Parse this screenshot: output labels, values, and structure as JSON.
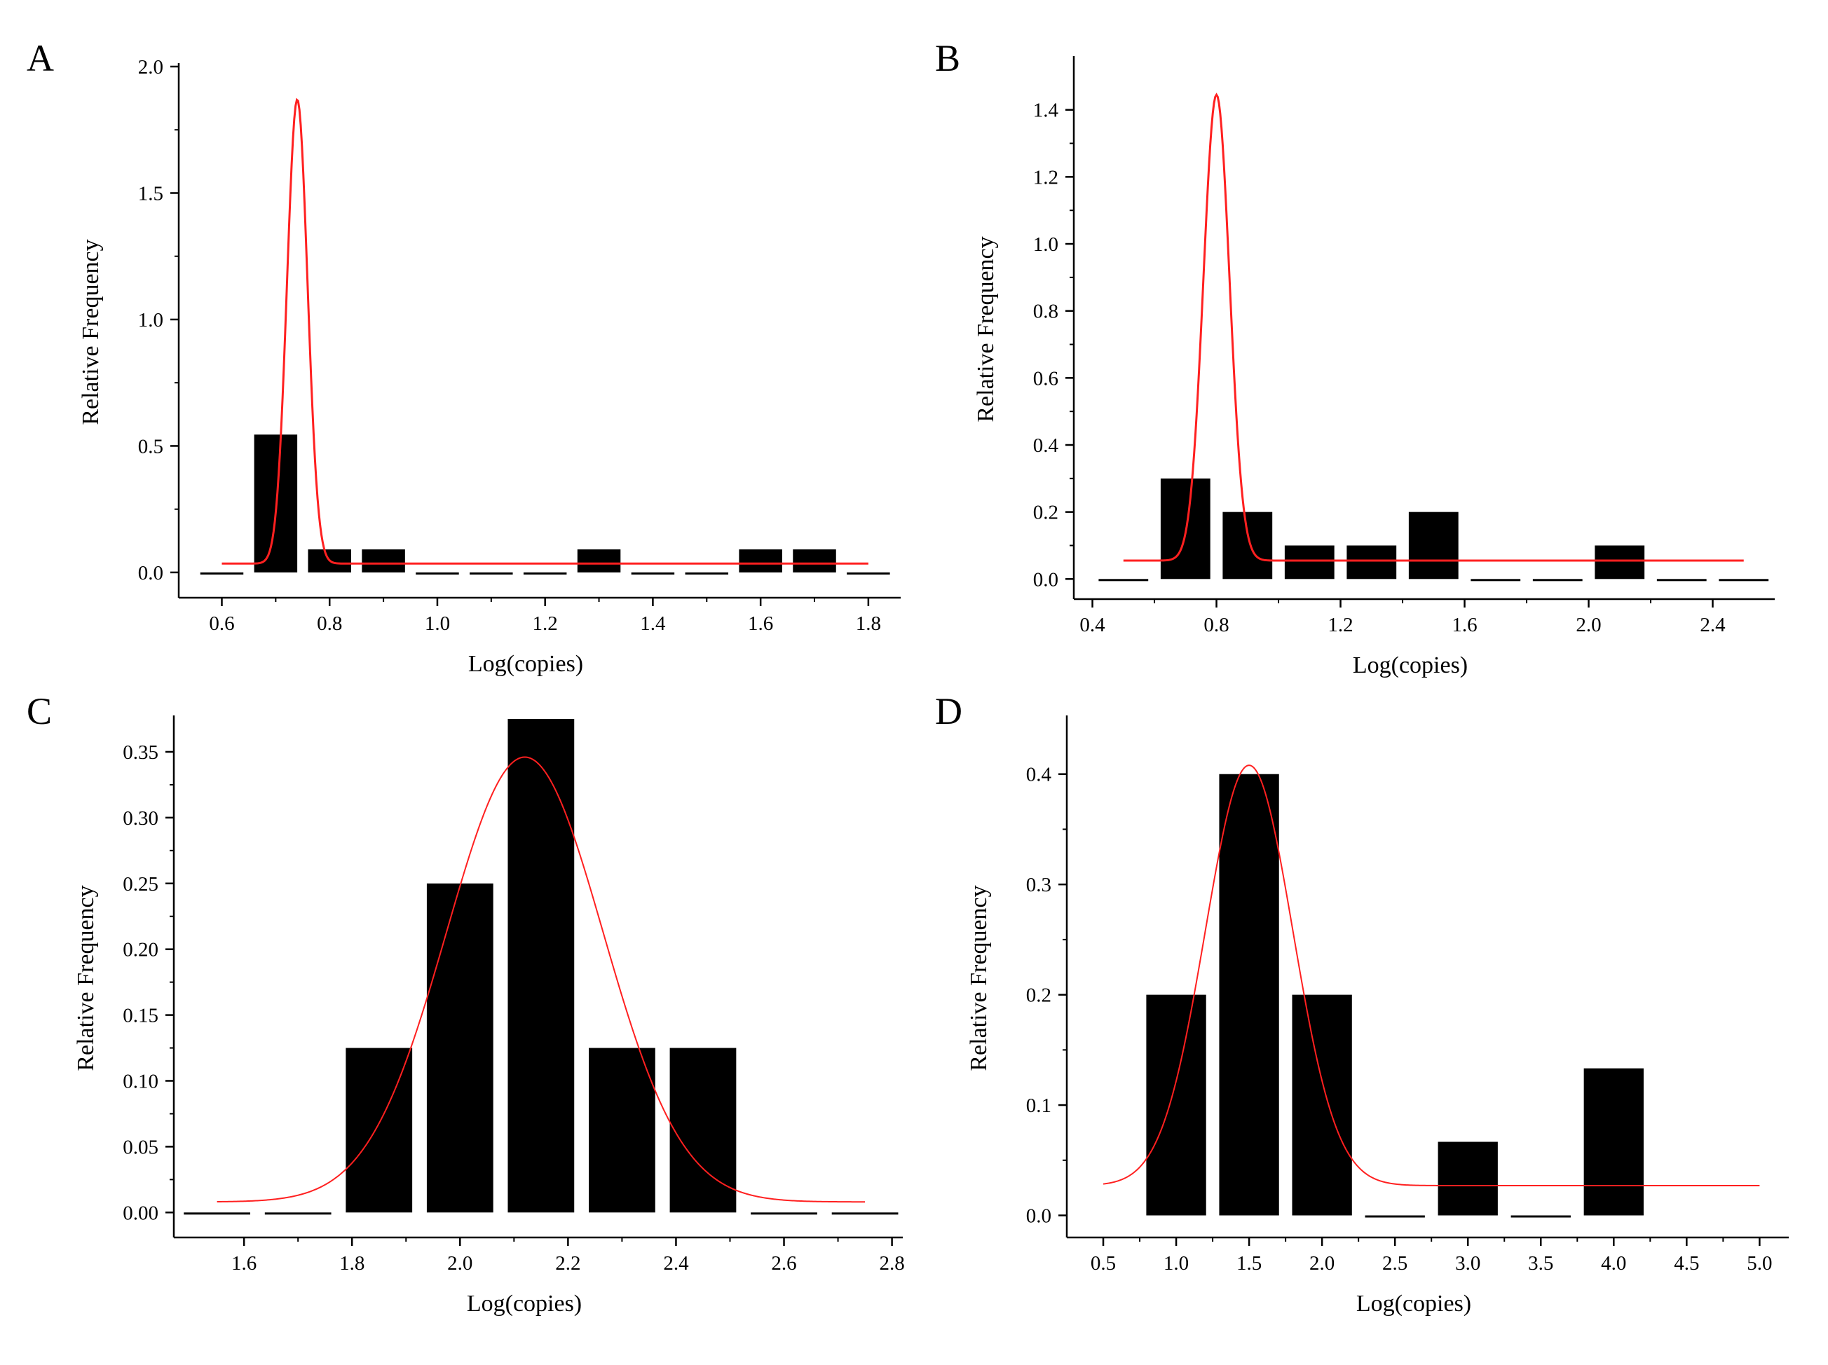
{
  "colors": {
    "bar": "#000000",
    "fit": "#ff2020",
    "axis": "#000000"
  },
  "chart_data": [
    {
      "id": "A",
      "panel_label": "A",
      "type": "bar",
      "xlabel": "Log(copies)",
      "ylabel": "Relative Frequency",
      "xlim": [
        0.52,
        1.86
      ],
      "ylim": [
        -0.1,
        2.0
      ],
      "xticks": [
        0.6,
        0.8,
        1.0,
        1.2,
        1.4,
        1.6,
        1.8
      ],
      "xtick_labels": [
        "0.6",
        "0.8",
        "1.0",
        "1.2",
        "1.4",
        "1.6",
        "1.8"
      ],
      "yticks": [
        0.0,
        0.5,
        1.0,
        1.5,
        2.0
      ],
      "ytick_labels": [
        "0.0",
        "0.5",
        "1.0",
        "1.5",
        "2.0"
      ],
      "bin_width": 0.1,
      "bar_fill": 0.8,
      "bins": [
        0.6,
        0.7,
        0.8,
        0.9,
        1.0,
        1.1,
        1.2,
        1.3,
        1.4,
        1.5,
        1.6,
        1.7,
        1.8
      ],
      "values": [
        0.0,
        0.545,
        0.091,
        0.091,
        0.0,
        0.0,
        0.0,
        0.091,
        0.0,
        0.0,
        0.091,
        0.091,
        0.0
      ],
      "fit": {
        "type": "gaussian",
        "baseline": 0.035,
        "amplitude": 1.835,
        "center": 0.74,
        "sigma": 0.019,
        "x_range": [
          0.6,
          1.8
        ]
      }
    },
    {
      "id": "B",
      "panel_label": "B",
      "type": "bar",
      "xlabel": "Log(copies)",
      "ylabel": "Relative Frequency",
      "xlim": [
        0.34,
        2.6
      ],
      "ylim": [
        -0.06,
        1.55
      ],
      "xticks": [
        0.4,
        0.8,
        1.2,
        1.6,
        2.0,
        2.4
      ],
      "xtick_labels": [
        "0.4",
        "0.8",
        "1.2",
        "1.6",
        "2.0",
        "2.4"
      ],
      "yticks": [
        0.0,
        0.2,
        0.4,
        0.6,
        0.8,
        1.0,
        1.2,
        1.4
      ],
      "ytick_labels": [
        "0.0",
        "0.2",
        "0.4",
        "0.6",
        "0.8",
        "1.0",
        "1.2",
        "1.4"
      ],
      "bin_width": 0.2,
      "bar_fill": 0.8,
      "bins": [
        0.5,
        0.7,
        0.9,
        1.1,
        1.3,
        1.5,
        1.7,
        1.9,
        2.1,
        2.3,
        2.5
      ],
      "values": [
        0.0,
        0.3,
        0.2,
        0.1,
        0.1,
        0.2,
        0.0,
        0.0,
        0.1,
        0.0,
        0.0
      ],
      "fit": {
        "type": "gaussian",
        "baseline": 0.055,
        "amplitude": 1.39,
        "center": 0.8,
        "sigma": 0.042,
        "x_range": [
          0.5,
          2.5
        ]
      }
    },
    {
      "id": "C",
      "panel_label": "C",
      "type": "bar",
      "xlabel": "Log(copies)",
      "ylabel": "Relative Frequency",
      "xlim": [
        1.47,
        2.82
      ],
      "ylim": [
        -0.019,
        0.375
      ],
      "xticks": [
        1.6,
        1.8,
        2.0,
        2.2,
        2.4,
        2.6,
        2.8
      ],
      "xtick_labels": [
        "1.6",
        "1.8",
        "2.0",
        "2.2",
        "2.4",
        "2.6",
        "2.8"
      ],
      "yticks": [
        0.0,
        0.05,
        0.1,
        0.15,
        0.2,
        0.25,
        0.3,
        0.35
      ],
      "ytick_labels": [
        "0.00",
        "0.05",
        "0.10",
        "0.15",
        "0.20",
        "0.25",
        "0.30",
        "0.35"
      ],
      "bin_width": 0.15,
      "bar_fill": 0.82,
      "bins": [
        1.55,
        1.7,
        1.85,
        2.0,
        2.15,
        2.3,
        2.45,
        2.6,
        2.75
      ],
      "values": [
        0.0,
        0.0,
        0.125,
        0.25,
        0.375,
        0.125,
        0.125,
        0.0,
        0.0
      ],
      "fit": {
        "type": "gaussian",
        "baseline": 0.008,
        "amplitude": 0.338,
        "center": 2.12,
        "sigma": 0.145,
        "x_range": [
          1.55,
          2.75
        ]
      }
    },
    {
      "id": "D",
      "panel_label": "D",
      "type": "bar",
      "xlabel": "Log(copies)",
      "ylabel": "Relative Frequency",
      "xlim": [
        0.25,
        5.2
      ],
      "ylim": [
        -0.02,
        0.45
      ],
      "xticks": [
        0.5,
        1.0,
        1.5,
        2.0,
        2.5,
        3.0,
        3.5,
        4.0,
        4.5,
        5.0
      ],
      "xtick_labels": [
        "0.5",
        "1.0",
        "1.5",
        "2.0",
        "2.5",
        "3.0",
        "3.5",
        "4.0",
        "4.5",
        "5.0"
      ],
      "yticks": [
        0.0,
        0.1,
        0.2,
        0.3,
        0.4
      ],
      "ytick_labels": [
        "0.0",
        "0.1",
        "0.2",
        "0.3",
        "0.4"
      ],
      "bin_width": 0.5,
      "bar_fill": 0.82,
      "bins": [
        1.0,
        1.5,
        2.0,
        2.5,
        3.0,
        3.5,
        4.0
      ],
      "values": [
        0.2,
        0.4,
        0.2,
        0.0,
        0.0667,
        0.0,
        0.1333
      ],
      "fit": {
        "type": "gaussian",
        "baseline": 0.027,
        "amplitude": 0.381,
        "center": 1.5,
        "sigma": 0.3,
        "x_range": [
          0.5,
          5.0
        ]
      }
    }
  ]
}
